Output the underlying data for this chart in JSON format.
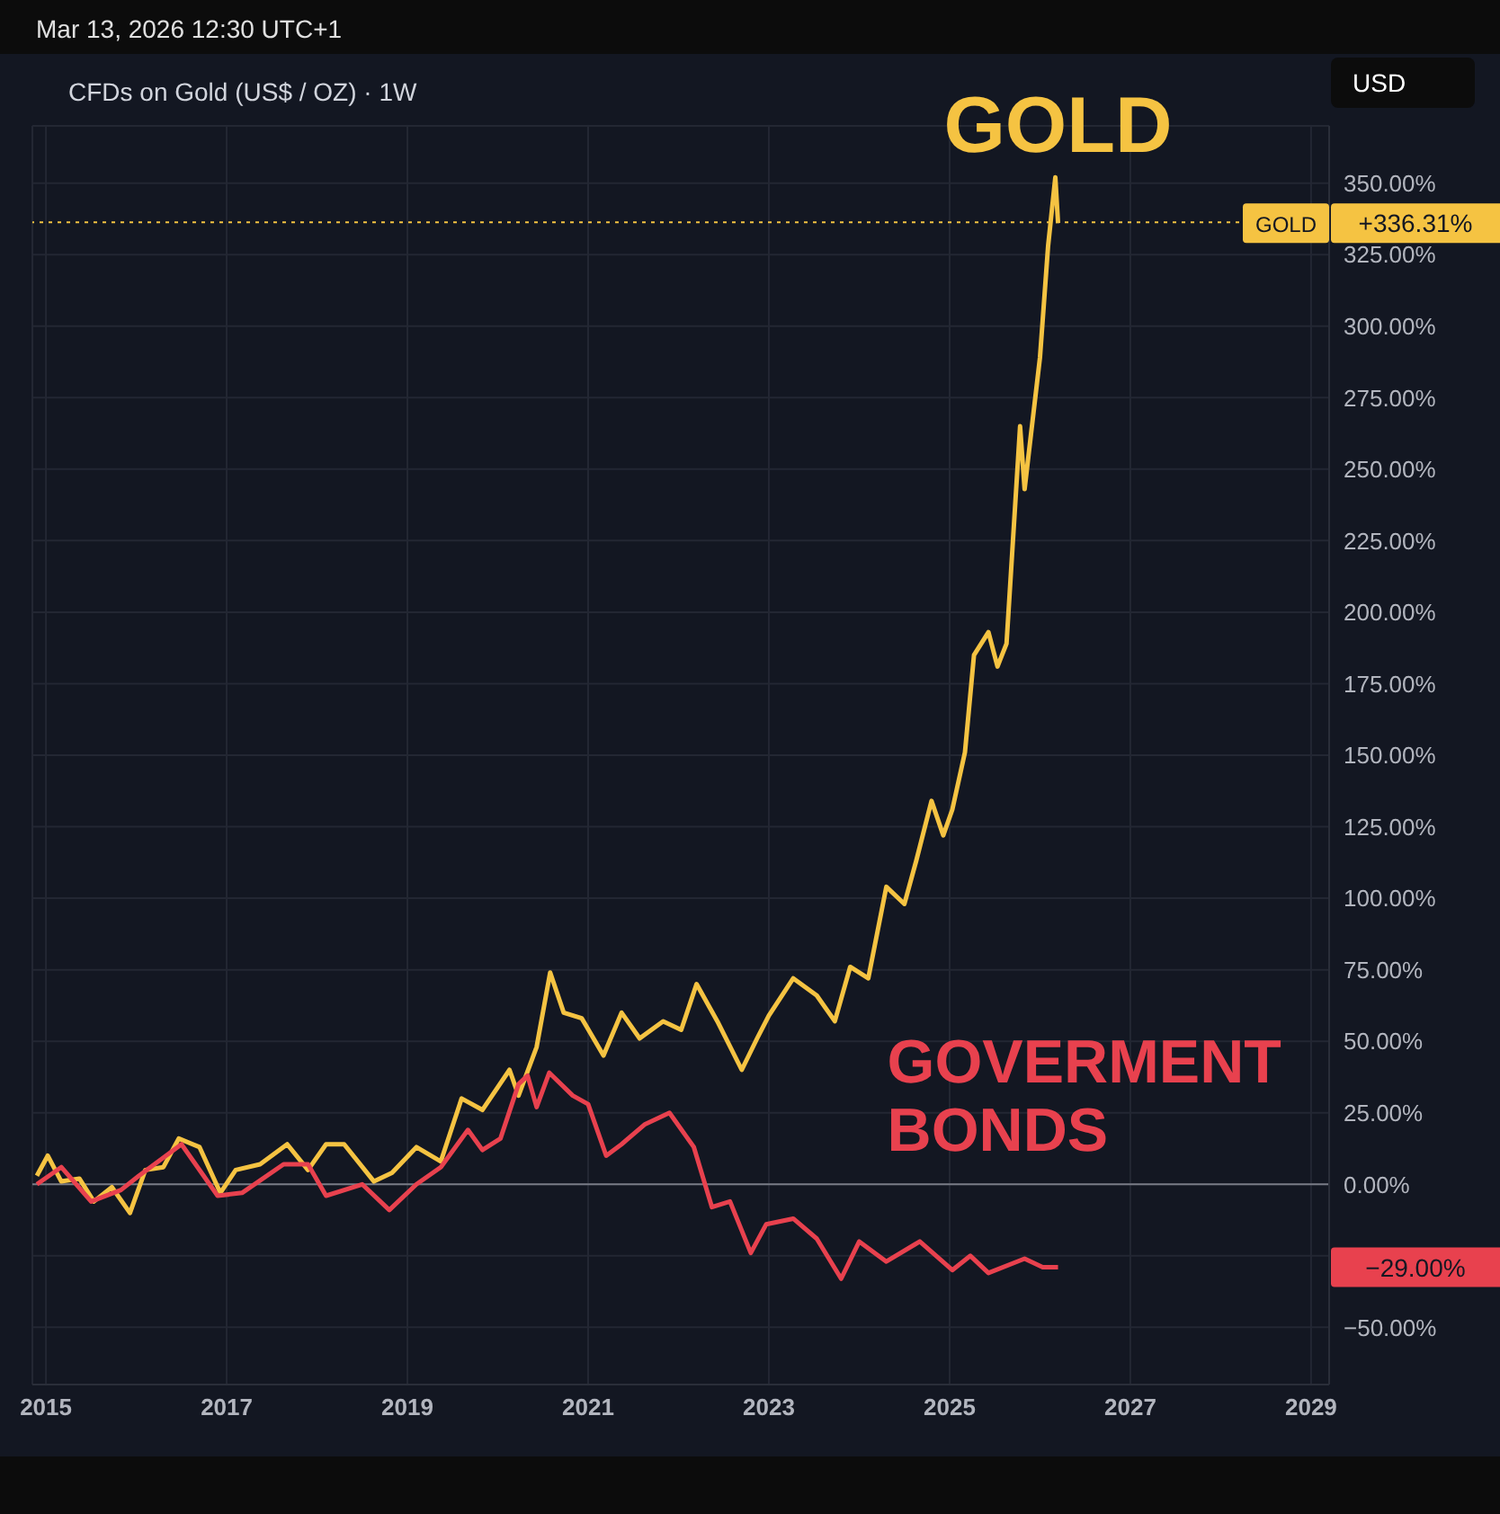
{
  "chart_data": {
    "type": "line",
    "title": "CFDs on Gold (US$ / OZ) · 1W",
    "annotations": [
      "Mar 13, 2026 12:30 UTC+1",
      "USD",
      "+336.31%",
      "−29.00%"
    ],
    "series": [
      {
        "name": "GOLD",
        "color": "#f5c342",
        "x": [
          2014.9,
          2015.02,
          2015.17,
          2015.37,
          2015.53,
          2015.73,
          2015.93,
          2016.1,
          2016.3,
          2016.47,
          2016.7,
          2016.93,
          2017.1,
          2017.37,
          2017.67,
          2017.9,
          2018.1,
          2018.3,
          2018.63,
          2018.83,
          2019.1,
          2019.37,
          2019.6,
          2019.83,
          2020.13,
          2020.23,
          2020.43,
          2020.58,
          2020.73,
          2020.93,
          2021.17,
          2021.37,
          2021.57,
          2021.83,
          2022.03,
          2022.2,
          2022.43,
          2022.7,
          2022.87,
          2023.0,
          2023.27,
          2023.53,
          2023.73,
          2023.9,
          2024.1,
          2024.3,
          2024.5,
          2024.63,
          2024.8,
          2024.93,
          2025.03,
          2025.17,
          2025.27,
          2025.43,
          2025.53,
          2025.63,
          2025.78,
          2025.83,
          2025.9,
          2026.0,
          2026.09,
          2026.17,
          2026.2
        ],
        "values": [
          3,
          10,
          1,
          2,
          -6,
          -1,
          -10,
          5,
          6,
          16,
          13,
          -3,
          5,
          7,
          14,
          5,
          14,
          14,
          1,
          4,
          13,
          8,
          30,
          26,
          40,
          31,
          48,
          74,
          60,
          58,
          45,
          60,
          51,
          57,
          54,
          70,
          57,
          40,
          51,
          59,
          72,
          66,
          57,
          76,
          72,
          104,
          98,
          113,
          134,
          122,
          131,
          151,
          185,
          193,
          181,
          189,
          265,
          243,
          262,
          289,
          328,
          352,
          336
        ]
      },
      {
        "name": "GOVERMENT BONDS",
        "color": "#e8414e",
        "x": [
          2014.9,
          2015.17,
          2015.5,
          2015.83,
          2016.03,
          2016.5,
          2016.9,
          2017.17,
          2017.63,
          2017.9,
          2018.1,
          2018.5,
          2018.8,
          2019.1,
          2019.37,
          2019.67,
          2019.83,
          2020.03,
          2020.23,
          2020.33,
          2020.43,
          2020.57,
          2020.83,
          2021.0,
          2021.2,
          2021.37,
          2021.63,
          2021.9,
          2022.17,
          2022.37,
          2022.57,
          2022.8,
          2022.97,
          2023.27,
          2023.53,
          2023.8,
          2024.0,
          2024.3,
          2024.67,
          2025.03,
          2025.23,
          2025.43,
          2025.83,
          2026.03,
          2026.2
        ],
        "values": [
          0,
          6,
          -6,
          -2,
          3,
          14,
          -4,
          -3,
          7,
          7,
          -4,
          0,
          -9,
          0,
          6,
          19,
          12,
          16,
          35,
          38,
          27,
          39,
          31,
          28,
          10,
          14,
          21,
          25,
          13,
          -8,
          -6,
          -24,
          -14,
          -12,
          -19,
          -33,
          -20,
          -27,
          -20,
          -30,
          -25,
          -31,
          -26,
          -29,
          -29
        ]
      }
    ],
    "xlim": [
      2014.85,
      2029.2
    ],
    "xticks": [
      2015,
      2017,
      2019,
      2021,
      2023,
      2025,
      2027,
      2029
    ],
    "ylim": [
      -70,
      370
    ],
    "yticks": [
      {
        "value": -50,
        "label": "−50.00%"
      },
      {
        "value": -25,
        "label": null
      },
      {
        "value": 0,
        "label": "0.00%"
      },
      {
        "value": 25,
        "label": "25.00%"
      },
      {
        "value": 50,
        "label": "50.00%"
      },
      {
        "value": 75,
        "label": "75.00%"
      },
      {
        "value": 100,
        "label": "100.00%"
      },
      {
        "value": 125,
        "label": "125.00%"
      },
      {
        "value": 150,
        "label": "150.00%"
      },
      {
        "value": 175,
        "label": "175.00%"
      },
      {
        "value": 200,
        "label": "200.00%"
      },
      {
        "value": 225,
        "label": "225.00%"
      },
      {
        "value": 250,
        "label": "250.00%"
      },
      {
        "value": 275,
        "label": "275.00%"
      },
      {
        "value": 300,
        "label": "300.00%"
      },
      {
        "value": 325,
        "label": "325.00%"
      },
      {
        "value": 350,
        "label": "350.00%"
      }
    ],
    "ref_lines": [
      {
        "axis": "y",
        "value": 0,
        "color": "#787b86"
      },
      {
        "axis": "y",
        "value": 336.31,
        "color": "#f5c342",
        "line_style": "dotted"
      }
    ],
    "grid": true,
    "legend": false,
    "marker": "none",
    "line_style": "solid"
  }
}
